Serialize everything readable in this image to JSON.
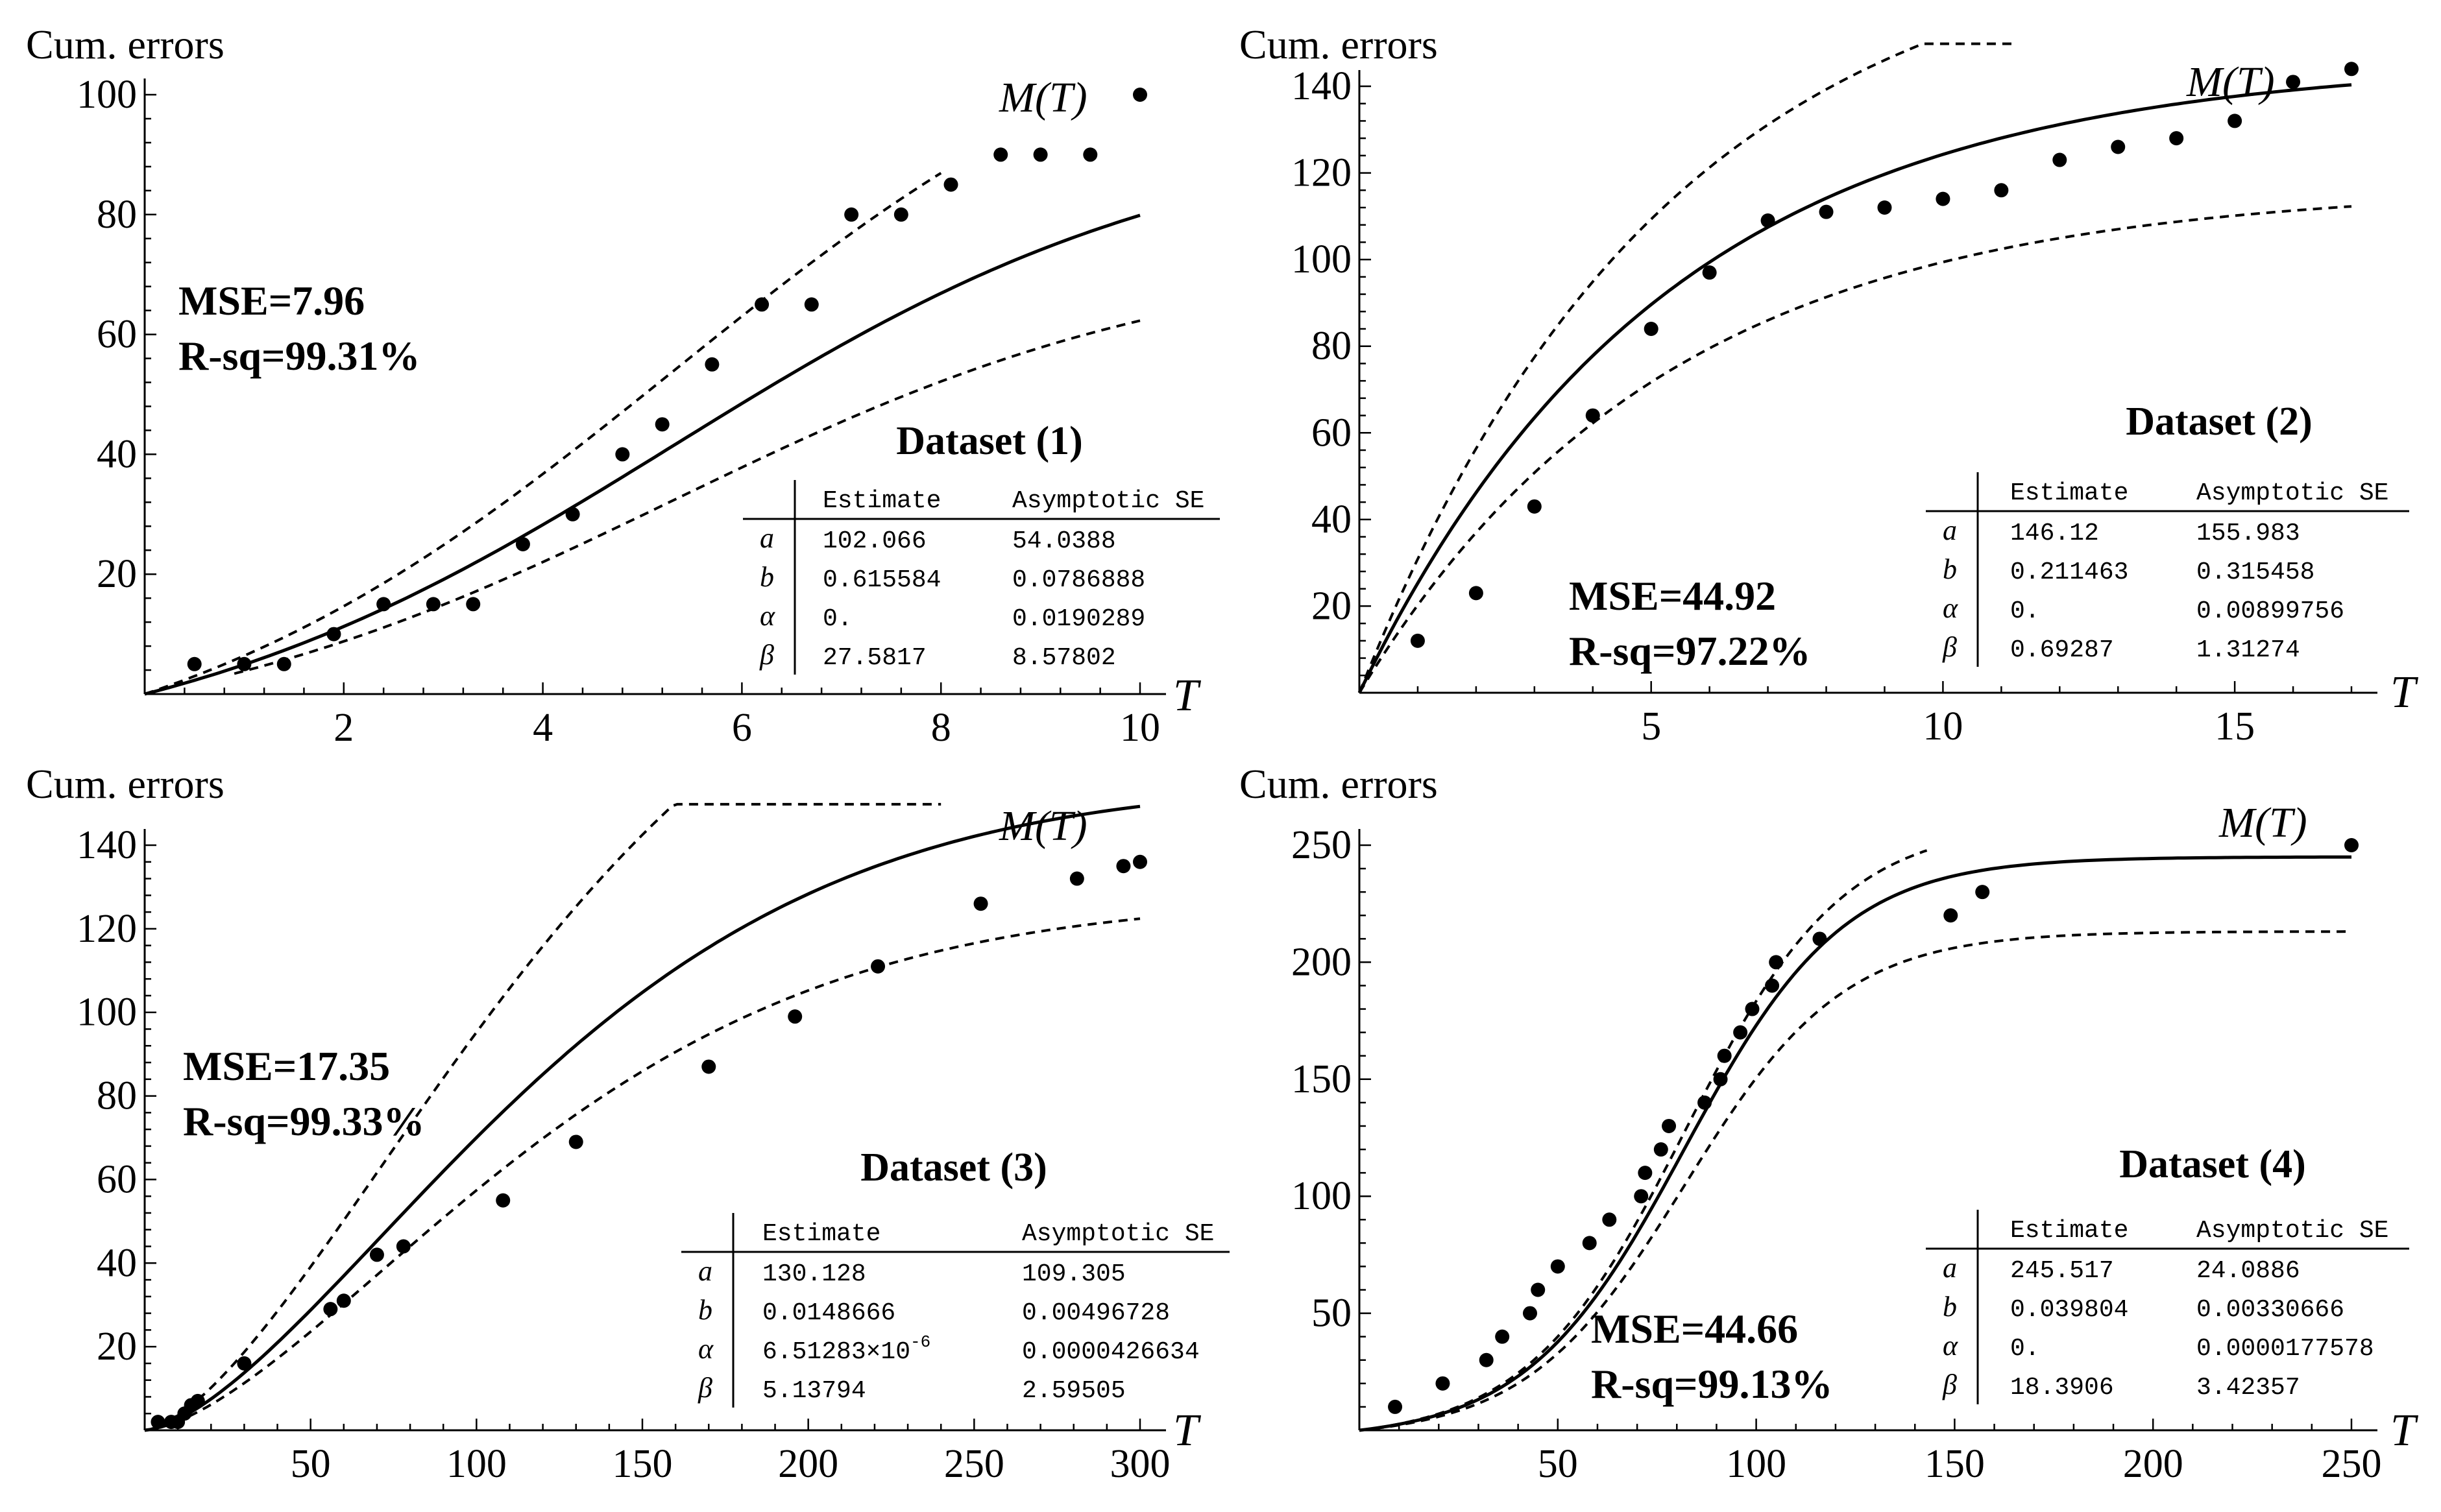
{
  "chart_data": [
    {
      "type": "line",
      "title": "Dataset (1)",
      "ylabel": "Cum. errors",
      "xlabel": "T",
      "curve_label": "M(T)",
      "xlim": [
        0,
        10
      ],
      "ylim": [
        0,
        100
      ],
      "xticks": [
        2,
        4,
        6,
        8,
        10
      ],
      "yticks": [
        20,
        40,
        60,
        80,
        100
      ],
      "mse": "MSE=7.96",
      "rsq": "R-sq=99.31%",
      "points": [
        [
          0.5,
          5
        ],
        [
          1,
          5
        ],
        [
          1.4,
          5
        ],
        [
          1.9,
          10
        ],
        [
          2.4,
          15
        ],
        [
          2.9,
          15
        ],
        [
          3.3,
          15
        ],
        [
          3.8,
          25
        ],
        [
          4.3,
          30
        ],
        [
          4.8,
          40
        ],
        [
          5.2,
          45
        ],
        [
          5.7,
          55
        ],
        [
          6.2,
          65
        ],
        [
          6.7,
          65
        ],
        [
          7.1,
          80
        ],
        [
          7.6,
          80
        ],
        [
          8.1,
          85
        ],
        [
          8.6,
          90
        ],
        [
          9,
          90
        ],
        [
          9.5,
          90
        ],
        [
          10,
          100
        ]
      ],
      "table": {
        "headers": [
          "Estimate",
          "Asymptotic SE"
        ],
        "rows": [
          {
            "param": "a",
            "estimate": "102.066",
            "se": "54.0388"
          },
          {
            "param": "b",
            "estimate": "0.615584",
            "se": "0.0786888"
          },
          {
            "param": "α",
            "estimate": "0.",
            "se": "0.0190289"
          },
          {
            "param": "β",
            "estimate": "27.5817",
            "se": "8.57802"
          }
        ]
      }
    },
    {
      "type": "line",
      "title": "Dataset (2)",
      "ylabel": "Cum. errors",
      "xlabel": "T",
      "curve_label": "M(T)",
      "xlim": [
        0,
        17
      ],
      "ylim": [
        0,
        140
      ],
      "xticks": [
        5,
        10,
        15
      ],
      "yticks": [
        20,
        40,
        60,
        80,
        100,
        120,
        140
      ],
      "mse": "MSE=44.92",
      "rsq": "R-sq=97.22%",
      "points": [
        [
          1,
          12
        ],
        [
          2,
          23
        ],
        [
          3,
          43
        ],
        [
          4,
          64
        ],
        [
          5,
          84
        ],
        [
          6,
          97
        ],
        [
          7,
          109
        ],
        [
          8,
          111
        ],
        [
          9,
          112
        ],
        [
          10,
          114
        ],
        [
          11,
          116
        ],
        [
          12,
          123
        ],
        [
          13,
          126
        ],
        [
          14,
          128
        ],
        [
          15,
          132
        ],
        [
          16,
          141
        ],
        [
          17,
          144
        ]
      ],
      "table": {
        "headers": [
          "Estimate",
          "Asymptotic SE"
        ],
        "rows": [
          {
            "param": "a",
            "estimate": "146.12",
            "se": "155.983"
          },
          {
            "param": "b",
            "estimate": "0.211463",
            "se": "0.315458"
          },
          {
            "param": "α",
            "estimate": "0.",
            "se": "0.00899756"
          },
          {
            "param": "β",
            "estimate": "0.69287",
            "se": "1.31274"
          }
        ]
      }
    },
    {
      "type": "line",
      "title": "Dataset (3)",
      "ylabel": "Cum. errors",
      "xlabel": "T",
      "curve_label": "M(T)",
      "xlim": [
        0,
        300
      ],
      "ylim": [
        0,
        140
      ],
      "xticks": [
        50,
        100,
        150,
        200,
        250,
        300
      ],
      "yticks": [
        20,
        40,
        60,
        80,
        100,
        120,
        140
      ],
      "mse": "MSE=17.35",
      "rsq": "R-sq=99.33%",
      "points": [
        [
          4,
          2
        ],
        [
          8,
          2
        ],
        [
          10,
          2
        ],
        [
          12,
          4
        ],
        [
          14,
          6
        ],
        [
          16,
          7
        ],
        [
          30,
          16
        ],
        [
          56,
          29
        ],
        [
          60,
          31
        ],
        [
          70,
          42
        ],
        [
          78,
          44
        ],
        [
          108,
          55
        ],
        [
          130,
          69
        ],
        [
          170,
          87
        ],
        [
          196,
          99
        ],
        [
          221,
          111
        ],
        [
          252,
          126
        ],
        [
          281,
          132
        ],
        [
          295,
          135
        ],
        [
          300,
          136
        ]
      ],
      "table": {
        "headers": [
          "Estimate",
          "Asymptotic SE"
        ],
        "rows": [
          {
            "param": "a",
            "estimate": "130.128",
            "se": "109.305"
          },
          {
            "param": "b",
            "estimate": "0.0148666",
            "se": "0.00496728"
          },
          {
            "param": "α",
            "estimate": "6.51283×10",
            "exp": "-6",
            "se": "0.0000426634"
          },
          {
            "param": "β",
            "estimate": "5.13794",
            "se": "2.59505"
          }
        ]
      }
    },
    {
      "type": "line",
      "title": "Dataset (4)",
      "ylabel": "Cum. errors",
      "xlabel": "T",
      "curve_label": "M(T)",
      "xlim": [
        0,
        250
      ],
      "ylim": [
        0,
        250
      ],
      "xticks": [
        50,
        100,
        150,
        200,
        250
      ],
      "yticks": [
        50,
        100,
        150,
        200,
        250
      ],
      "mse": "MSE=44.66",
      "rsq": "R-sq=99.13%",
      "points": [
        [
          9,
          10
        ],
        [
          21,
          20
        ],
        [
          32,
          30
        ],
        [
          36,
          40
        ],
        [
          43,
          50
        ],
        [
          45,
          60
        ],
        [
          50,
          70
        ],
        [
          58,
          80
        ],
        [
          63,
          90
        ],
        [
          71,
          100
        ],
        [
          72,
          110
        ],
        [
          76,
          120
        ],
        [
          78,
          130
        ],
        [
          87,
          140
        ],
        [
          91,
          150
        ],
        [
          92,
          160
        ],
        [
          96,
          170
        ],
        [
          99,
          180
        ],
        [
          104,
          190
        ],
        [
          105,
          200
        ],
        [
          116,
          210
        ],
        [
          149,
          220
        ],
        [
          157,
          230
        ],
        [
          250,
          250
        ]
      ],
      "table": {
        "headers": [
          "Estimate",
          "Asymptotic SE"
        ],
        "rows": [
          {
            "param": "a",
            "estimate": "245.517",
            "se": "24.0886"
          },
          {
            "param": "b",
            "estimate": "0.039804",
            "se": "0.00330666"
          },
          {
            "param": "α",
            "estimate": "0.",
            "se": "0.0000177578"
          },
          {
            "param": "β",
            "estimate": "18.3906",
            "se": "3.42357"
          }
        ]
      }
    }
  ]
}
